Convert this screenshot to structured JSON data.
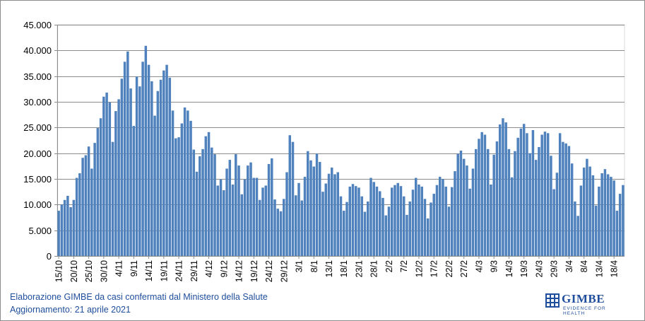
{
  "chart_data": {
    "type": "bar",
    "color": "#4f81bd",
    "grid": true,
    "ylim": [
      0,
      45000
    ],
    "yticks": [
      "0",
      "5.000",
      "10.000",
      "15.000",
      "20.000",
      "25.000",
      "30.000",
      "35.000",
      "40.000",
      "45.000"
    ],
    "x_start": "15/10",
    "x_end": "20/4",
    "xtick_labels": [
      "15/10",
      "20/10",
      "25/10",
      "30/10",
      "4/11",
      "9/11",
      "14/11",
      "19/11",
      "24/11",
      "29/11",
      "4/12",
      "9/12",
      "14/12",
      "19/12",
      "24/12",
      "29/12",
      "3/1",
      "8/1",
      "13/1",
      "18/1",
      "23/1",
      "28/1",
      "2/2",
      "7/2",
      "12/2",
      "17/2",
      "22/2",
      "27/2",
      "4/3",
      "9/3",
      "14/3",
      "19/3",
      "24/3",
      "29/3",
      "3/4",
      "8/4",
      "13/4",
      "18/4"
    ],
    "values": [
      8800,
      10000,
      10900,
      11700,
      9500,
      10900,
      15200,
      16100,
      19100,
      19600,
      21300,
      17000,
      22000,
      24900,
      26800,
      31000,
      31800,
      29900,
      22200,
      28200,
      30500,
      34500,
      37800,
      39800,
      32600,
      25300,
      34900,
      33000,
      37800,
      40900,
      37200,
      34000,
      27300,
      32100,
      34300,
      36100,
      37200,
      34700,
      28300,
      22900,
      23100,
      25800,
      28900,
      28300,
      26300,
      20700,
      16400,
      19400,
      20800,
      23300,
      24100,
      21100,
      19800,
      13700,
      14900,
      12800,
      17000,
      18700,
      13900,
      19800,
      17600,
      12000,
      14900,
      17600,
      18200,
      15200,
      15200,
      10900,
      13300,
      13700,
      17900,
      19000,
      11000,
      9200,
      8700,
      11100,
      16300,
      23500,
      22200,
      11800,
      14200,
      10800,
      15400,
      20400,
      18600,
      17400,
      19900,
      18300,
      12500,
      14100,
      16000,
      17200,
      15900,
      16300,
      11600,
      8800,
      10500,
      13500,
      14000,
      13600,
      13300,
      11600,
      8600,
      10600,
      15200,
      14400,
      13500,
      12600,
      11300,
      7900,
      9600,
      13300,
      13800,
      14200,
      13600,
      11600,
      8000,
      10600,
      12900,
      15200,
      13900,
      13500,
      11100,
      7300,
      10400,
      12100,
      13800,
      15400,
      15000,
      13500,
      9600,
      13400,
      16500,
      19900,
      20500,
      18900,
      17600,
      13100,
      17000,
      20800,
      22800,
      24100,
      23600,
      20800,
      13900,
      19700,
      22300,
      25600,
      26800,
      26000,
      20800,
      15300,
      20400,
      23000,
      24800,
      25700,
      23900,
      20000,
      24500,
      18700,
      21200,
      23600,
      24200,
      23900,
      19500,
      13000,
      16200,
      23900,
      22200,
      21900,
      21400,
      18000,
      10600,
      7800,
      13700,
      17200,
      18900,
      17400,
      15700,
      9800,
      13500,
      16100,
      16900,
      15900,
      15400,
      14700,
      8800,
      12100,
      13800
    ]
  },
  "footer": {
    "line1": "Elaborazione GIMBE da casi confermati dal Ministero della Salute",
    "line2": "Aggiornamento: 21 aprile 2021"
  },
  "logo": {
    "name": "GIMBE",
    "tagline": "EVIDENCE FOR HEALTH"
  }
}
